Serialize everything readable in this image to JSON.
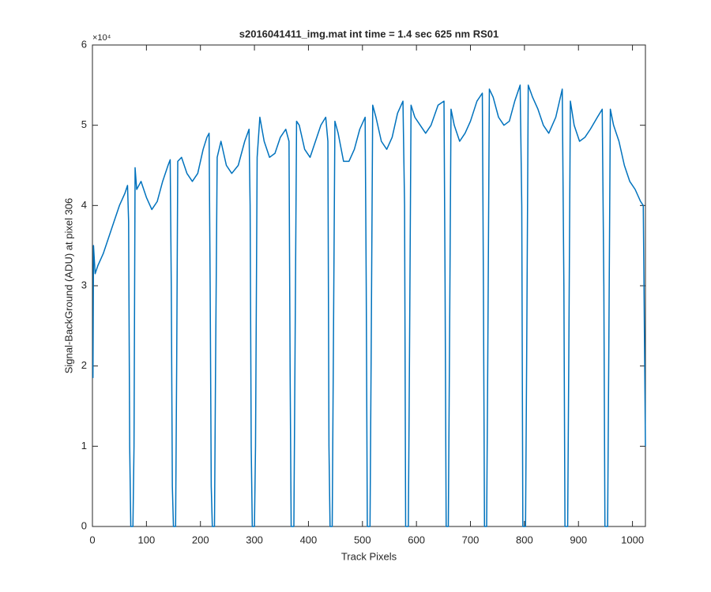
{
  "chart_data": {
    "type": "line",
    "title": "s2016041411_img.mat int time = 1.4 sec  625 nm RS01",
    "x_label": "Track Pixels",
    "y_label": "Signal-BackGround (ADU) at pixel 306",
    "y_exponent_label": "×10⁴",
    "xlim": [
      0,
      1024
    ],
    "xticks": [
      0,
      100,
      200,
      300,
      400,
      500,
      600,
      700,
      800,
      900,
      1000
    ],
    "ylim": [
      0,
      60000
    ],
    "yticks": [
      {
        "value": 0,
        "label": "0"
      },
      {
        "value": 10000,
        "label": "1"
      },
      {
        "value": 20000,
        "label": "2"
      },
      {
        "value": 30000,
        "label": "3"
      },
      {
        "value": 40000,
        "label": "4"
      },
      {
        "value": 50000,
        "label": "5"
      },
      {
        "value": 60000,
        "label": "6"
      }
    ],
    "grid": false,
    "x": [
      1,
      2,
      5,
      10,
      20,
      30,
      40,
      50,
      60,
      65,
      67,
      69,
      71,
      75,
      77,
      79,
      82,
      90,
      100,
      110,
      120,
      130,
      140,
      144,
      146,
      148,
      150,
      154,
      156,
      158,
      165,
      175,
      185,
      195,
      205,
      212,
      216,
      218,
      220,
      222,
      226,
      228,
      231,
      238,
      248,
      258,
      270,
      282,
      290,
      292,
      294,
      296,
      300,
      302,
      305,
      310,
      318,
      328,
      338,
      348,
      358,
      364,
      366,
      368,
      373,
      375,
      378,
      383,
      393,
      403,
      413,
      423,
      432,
      436,
      438,
      440,
      444,
      446,
      449,
      455,
      465,
      475,
      485,
      495,
      505,
      507,
      509,
      514,
      516,
      519,
      525,
      535,
      545,
      555,
      565,
      575,
      578,
      580,
      585,
      587,
      590,
      597,
      607,
      617,
      627,
      640,
      651,
      653,
      655,
      659,
      661,
      664,
      670,
      680,
      690,
      700,
      712,
      722,
      724,
      726,
      730,
      732,
      735,
      742,
      752,
      762,
      772,
      782,
      792,
      795,
      797,
      802,
      804,
      807,
      815,
      825,
      835,
      845,
      858,
      870,
      873,
      875,
      880,
      882,
      885,
      892,
      902,
      912,
      922,
      935,
      944,
      947,
      949,
      954,
      956,
      959,
      965,
      975,
      985,
      995,
      1005,
      1015,
      1020,
      1024
    ],
    "series": [
      {
        "color": "#0072bd",
        "values": [
          18500,
          35000,
          31500,
          32500,
          34000,
          36000,
          38000,
          40000,
          41500,
          42500,
          38000,
          10000,
          0,
          0,
          10000,
          44700,
          42000,
          43000,
          41000,
          39500,
          40500,
          43000,
          45000,
          45700,
          30000,
          5000,
          0,
          0,
          20000,
          45500,
          46000,
          44000,
          43000,
          44000,
          47000,
          48500,
          49000,
          30000,
          5000,
          0,
          0,
          20000,
          46000,
          48000,
          45000,
          44000,
          45000,
          48000,
          49500,
          40000,
          10000,
          0,
          0,
          10000,
          46000,
          51000,
          48000,
          46000,
          46500,
          48500,
          49500,
          48000,
          20000,
          0,
          0,
          20000,
          50500,
          50000,
          47000,
          46000,
          48000,
          50000,
          51000,
          48000,
          10000,
          0,
          0,
          20000,
          50500,
          49000,
          45500,
          45500,
          47000,
          49500,
          51000,
          30000,
          0,
          0,
          20000,
          52500,
          51000,
          48000,
          47000,
          48500,
          51500,
          53000,
          40000,
          0,
          0,
          20000,
          52500,
          51000,
          50000,
          49000,
          50000,
          52500,
          53000,
          30000,
          0,
          0,
          20000,
          52000,
          50000,
          48000,
          49000,
          50500,
          53000,
          54000,
          30000,
          0,
          0,
          20000,
          54500,
          53500,
          51000,
          50000,
          50500,
          53000,
          55000,
          40000,
          0,
          0,
          20000,
          55000,
          53500,
          52000,
          50000,
          49000,
          51000,
          54500,
          30000,
          0,
          0,
          20000,
          53000,
          50000,
          48000,
          48500,
          49500,
          51000,
          52000,
          30000,
          0,
          0,
          20000,
          52000,
          50000,
          48000,
          45000,
          43000,
          42000,
          40500,
          40000,
          10000
        ]
      }
    ]
  }
}
